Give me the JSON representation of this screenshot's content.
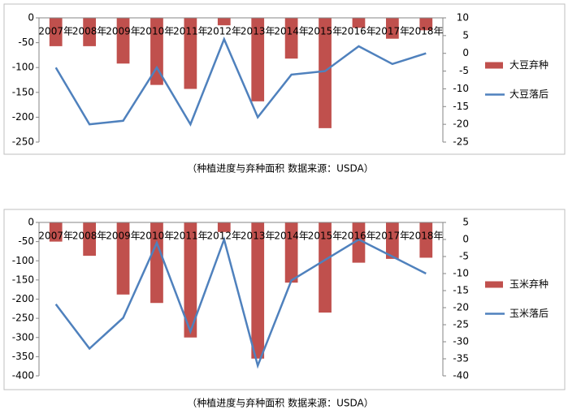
{
  "chart_data": [
    {
      "type": "bar",
      "categories": [
        "2007年",
        "2008年",
        "2009年",
        "2010年",
        "2011年",
        "2012年",
        "2013年",
        "2014年",
        "2015年",
        "2016年",
        "2017年",
        "2018年"
      ],
      "series": [
        {
          "name": "大豆弃种",
          "type": "bar",
          "color": "#c0504d",
          "values": [
            -57,
            -57,
            -92,
            -135,
            -143,
            -15,
            -168,
            -82,
            -222,
            -20,
            -42,
            -25
          ]
        },
        {
          "name": "大豆落后",
          "type": "line",
          "axis": "y2",
          "color": "#4f81bd",
          "values": [
            -4,
            -20,
            -19,
            -4,
            -20,
            4,
            -18,
            -6,
            -5,
            2,
            -3,
            0
          ]
        }
      ],
      "ylim": [
        -250,
        0
      ],
      "yticks": [
        0,
        -50,
        -100,
        -150,
        -200,
        -250
      ],
      "y2lim": [
        -25,
        10
      ],
      "y2ticks": [
        10,
        5,
        0,
        -5,
        -10,
        -15,
        -20,
        -25
      ],
      "caption": "（种植进度与弃种面积    数据来源：USDA）"
    },
    {
      "type": "bar",
      "categories": [
        "2007年",
        "2008年",
        "2009年",
        "2010年",
        "2011年",
        "2012年",
        "2013年",
        "2014年",
        "2015年",
        "2016年",
        "2017年",
        "2018年"
      ],
      "series": [
        {
          "name": "玉米弃种",
          "type": "bar",
          "color": "#c0504d",
          "values": [
            -50,
            -87,
            -188,
            -210,
            -300,
            -25,
            -355,
            -157,
            -235,
            -105,
            -95,
            -92
          ]
        },
        {
          "name": "玉米落后",
          "type": "line",
          "axis": "y2",
          "color": "#4f81bd",
          "values": [
            -19,
            -32,
            -23,
            -1,
            -27,
            0,
            -37,
            -12,
            -6,
            0,
            -5,
            -10
          ]
        }
      ],
      "ylim": [
        -400,
        0
      ],
      "yticks": [
        0,
        -50,
        -100,
        -150,
        -200,
        -250,
        -300,
        -350,
        -400
      ],
      "y2lim": [
        -40,
        5
      ],
      "y2ticks": [
        5,
        0,
        -5,
        -10,
        -15,
        -20,
        -25,
        -30,
        -35,
        -40
      ],
      "caption": "（种植进度与弃种面积    数据来源：USDA）"
    }
  ]
}
